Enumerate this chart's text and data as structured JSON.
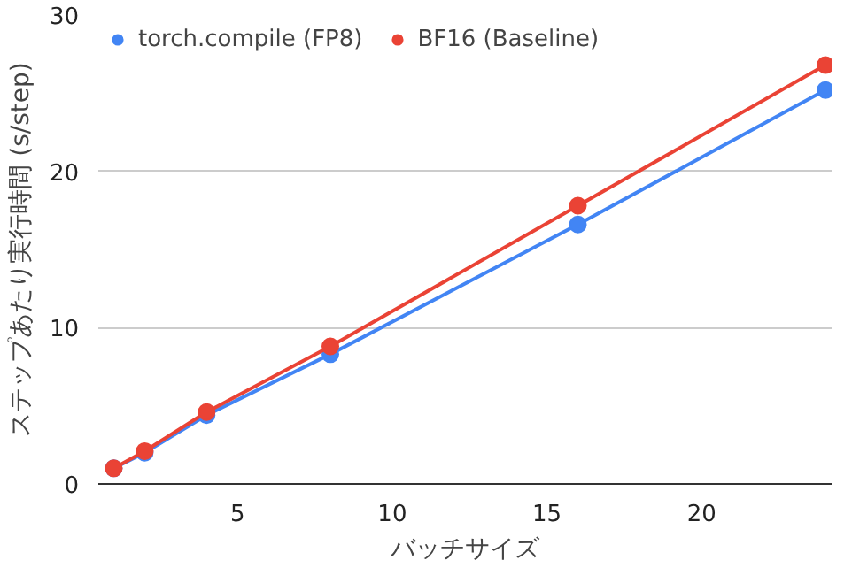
{
  "chart_data": {
    "type": "line",
    "xlabel": "バッチサイズ",
    "ylabel": "ステップあたり実行時間 (s/step)",
    "x": [
      1,
      2,
      4,
      8,
      16,
      24
    ],
    "series": [
      {
        "name": "torch.compile (FP8)",
        "color": "#4285f4",
        "values": [
          1.0,
          2.0,
          4.4,
          8.3,
          16.6,
          25.2
        ]
      },
      {
        "name": "BF16 (Baseline)",
        "color": "#ea4335",
        "values": [
          1.0,
          2.1,
          4.6,
          8.8,
          17.8,
          26.8
        ]
      }
    ],
    "xlim": [
      0.5,
      24.2
    ],
    "ylim": [
      0,
      30
    ],
    "xticks": [
      5,
      10,
      15,
      20
    ],
    "yticks": [
      0,
      10,
      20,
      30
    ],
    "grid": "y",
    "legend": "top left",
    "marker": "circle",
    "line_style": "solid"
  }
}
